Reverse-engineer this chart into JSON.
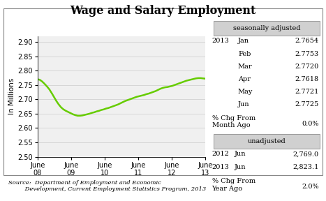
{
  "title": "Wage and Salary Employment",
  "ylabel": "In Millions",
  "ylim": [
    2.5,
    2.92
  ],
  "yticks": [
    2.5,
    2.55,
    2.6,
    2.65,
    2.7,
    2.75,
    2.8,
    2.85,
    2.9
  ],
  "x_tick_labels": [
    "June\n08",
    "June\n09",
    "June\n10",
    "June\n11",
    "June\n12",
    "June\n13"
  ],
  "line_color": "#66cc00",
  "line_width": 1.8,
  "background_color": "#ffffff",
  "plot_bg_color": "#f0f0f0",
  "source_text": "Source:  Department of Employment and Economic\n         Development, Current Employment Statistics Program, 2013",
  "seasonally_adjusted_label": "seasonally adjusted",
  "sa_year": "2013",
  "sa_data": [
    [
      "Jan",
      "2.7654"
    ],
    [
      "Feb",
      "2.7753"
    ],
    [
      "Mar",
      "2.7720"
    ],
    [
      "Apr",
      "2.7618"
    ],
    [
      "May",
      "2.7721"
    ],
    [
      "Jun",
      "2.7725"
    ]
  ],
  "sa_pct_chg_label": "% Chg From\nMonth Ago",
  "sa_pct_chg_value": "0.0%",
  "unadjusted_label": "unadjusted",
  "ua_data": [
    [
      "2012",
      "Jun",
      "2,769.0"
    ],
    [
      "2013",
      "Jun",
      "2,823.1"
    ]
  ],
  "ua_pct_chg_label": "% Chg From\nYear Ago",
  "ua_pct_chg_value": "2.0%",
  "y_values": [
    2.77,
    2.768,
    2.762,
    2.754,
    2.745,
    2.735,
    2.722,
    2.708,
    2.694,
    2.682,
    2.672,
    2.665,
    2.66,
    2.656,
    2.652,
    2.648,
    2.645,
    2.643,
    2.643,
    2.644,
    2.646,
    2.648,
    2.65,
    2.653,
    2.655,
    2.658,
    2.66,
    2.663,
    2.665,
    2.668,
    2.67,
    2.673,
    2.676,
    2.679,
    2.682,
    2.686,
    2.69,
    2.694,
    2.697,
    2.7,
    2.703,
    2.706,
    2.709,
    2.711,
    2.713,
    2.715,
    2.718,
    2.72,
    2.723,
    2.726,
    2.729,
    2.733,
    2.737,
    2.74,
    2.742,
    2.743,
    2.745,
    2.747,
    2.75,
    2.753,
    2.756,
    2.759,
    2.762,
    2.765,
    2.767,
    2.769,
    2.771,
    2.773,
    2.774,
    2.774,
    2.773,
    2.772
  ]
}
